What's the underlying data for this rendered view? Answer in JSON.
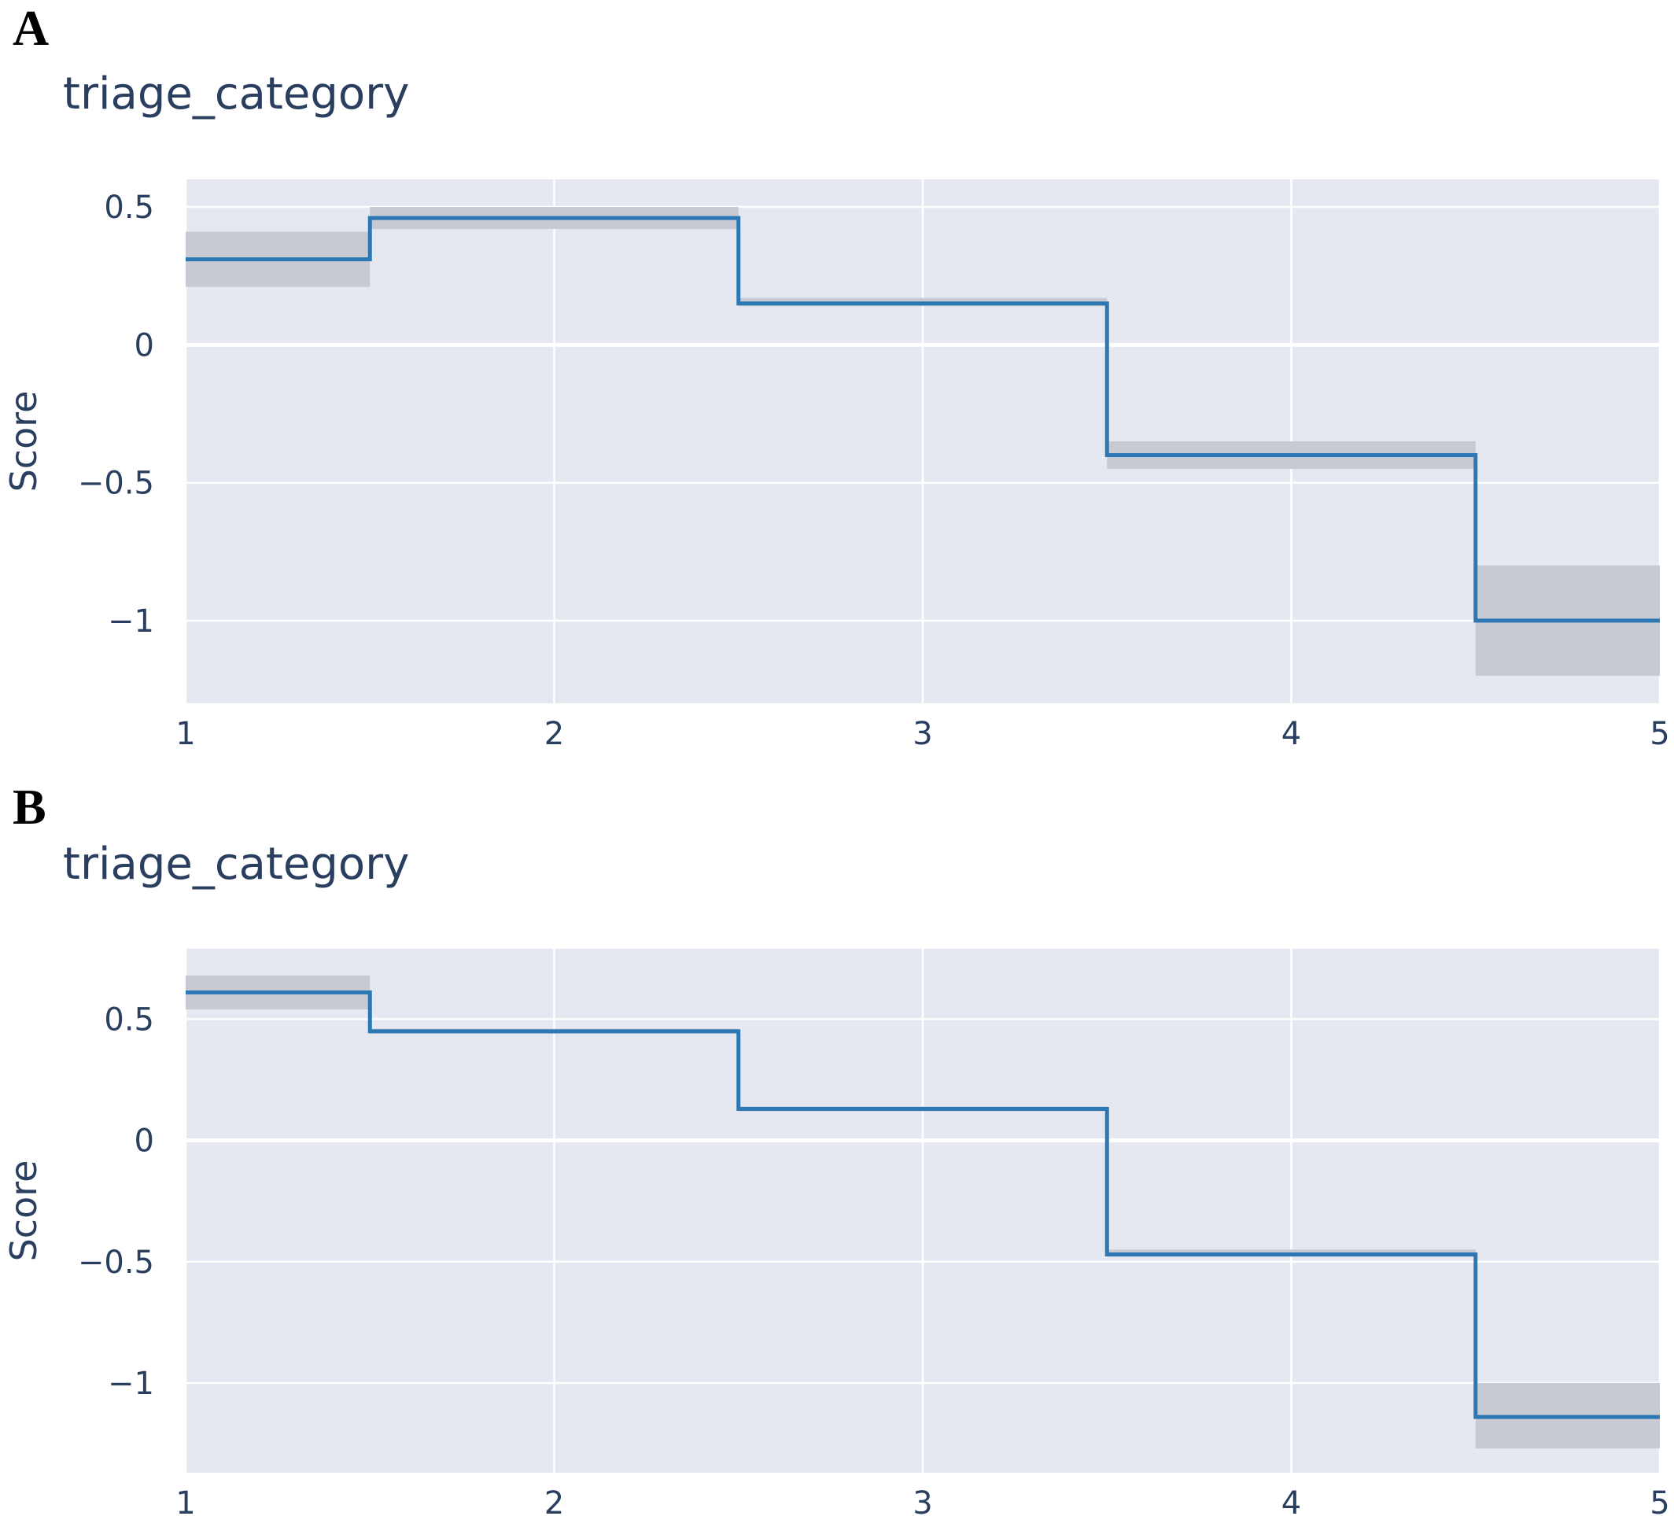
{
  "colors": {
    "plot_background": "#e5e8f0",
    "grid": "#ffffff",
    "line": "#2b78b4",
    "band": "#c8cad3",
    "text": "#2a3f5f",
    "letter": "#000000"
  },
  "chart_data": [
    {
      "panel_label": "A",
      "type": "line",
      "line_shape": "step (horizontal-vertical-horizontal, steps at midpoints)",
      "title": "triage_category",
      "xlabel": "",
      "ylabel": "Score",
      "xlim": [
        1,
        5
      ],
      "ylim": [
        -1.3,
        0.6
      ],
      "x_ticks": [
        1,
        2,
        3,
        4,
        5
      ],
      "x_tick_labels": [
        "1",
        "2",
        "3",
        "4",
        "5"
      ],
      "y_ticks": [
        0.5,
        0,
        -0.5,
        -1
      ],
      "y_tick_labels": [
        "0.5",
        "0",
        "−0.5",
        "−1"
      ],
      "grid": true,
      "series": [
        {
          "x": [
            1,
            2,
            3,
            4,
            5
          ],
          "y": [
            0.31,
            0.46,
            0.15,
            -0.4,
            -1.0
          ],
          "lower": [
            0.21,
            0.42,
            0.14,
            -0.45,
            -1.2
          ],
          "upper": [
            0.41,
            0.5,
            0.17,
            -0.35,
            -0.8
          ]
        }
      ]
    },
    {
      "panel_label": "B",
      "type": "line",
      "line_shape": "step (horizontal-vertical-horizontal, steps at midpoints)",
      "title": "triage_category",
      "xlabel": "",
      "ylabel": "Score",
      "xlim": [
        1,
        5
      ],
      "ylim": [
        -1.37,
        0.79
      ],
      "x_ticks": [
        1,
        2,
        3,
        4,
        5
      ],
      "x_tick_labels": [
        "1",
        "2",
        "3",
        "4",
        "5"
      ],
      "y_ticks": [
        0.5,
        0,
        -0.5,
        -1
      ],
      "y_tick_labels": [
        "0.5",
        "0",
        "−0.5",
        "−1"
      ],
      "grid": true,
      "series": [
        {
          "x": [
            1,
            2,
            3,
            4,
            5
          ],
          "y": [
            0.61,
            0.45,
            0.13,
            -0.47,
            -1.14
          ],
          "lower": [
            0.54,
            0.44,
            0.12,
            -0.48,
            -1.27
          ],
          "upper": [
            0.68,
            0.46,
            0.14,
            -0.45,
            -1.0
          ]
        }
      ]
    }
  ]
}
